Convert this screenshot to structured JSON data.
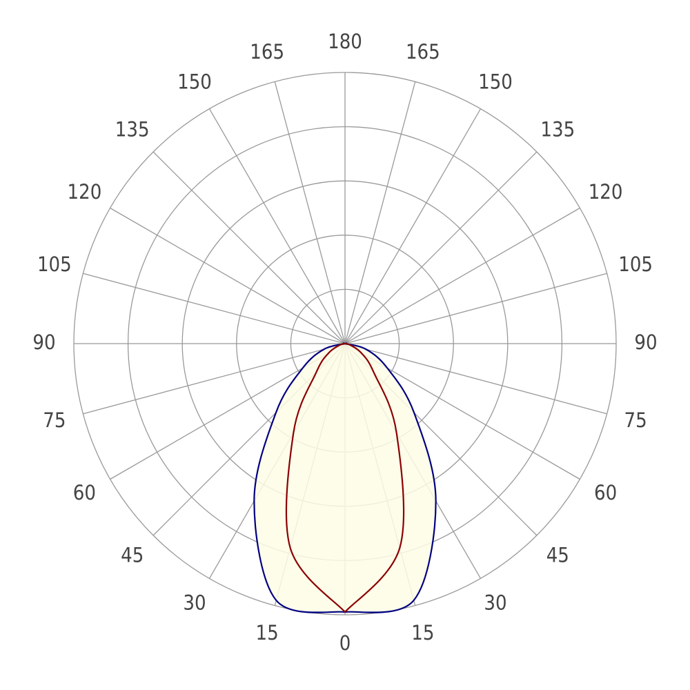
{
  "chart_data": {
    "type": "polar",
    "angles": [
      0,
      15,
      30,
      45,
      60,
      75,
      90,
      105,
      120,
      135,
      150,
      165,
      180
    ],
    "rlim": [
      0,
      100
    ],
    "rticks": [
      20,
      40,
      60,
      80,
      100
    ],
    "grid": true,
    "fill": "#fdfde6",
    "series": [
      {
        "color": "#000080",
        "values": [
          99,
          98,
          67,
          36,
          18,
          8,
          0,
          0,
          0,
          0,
          0,
          0,
          0
        ]
      },
      {
        "color": "#8b0000",
        "values": [
          99,
          78,
          38,
          15,
          7,
          2,
          0,
          0,
          0,
          0,
          0,
          0,
          0
        ]
      }
    ]
  }
}
